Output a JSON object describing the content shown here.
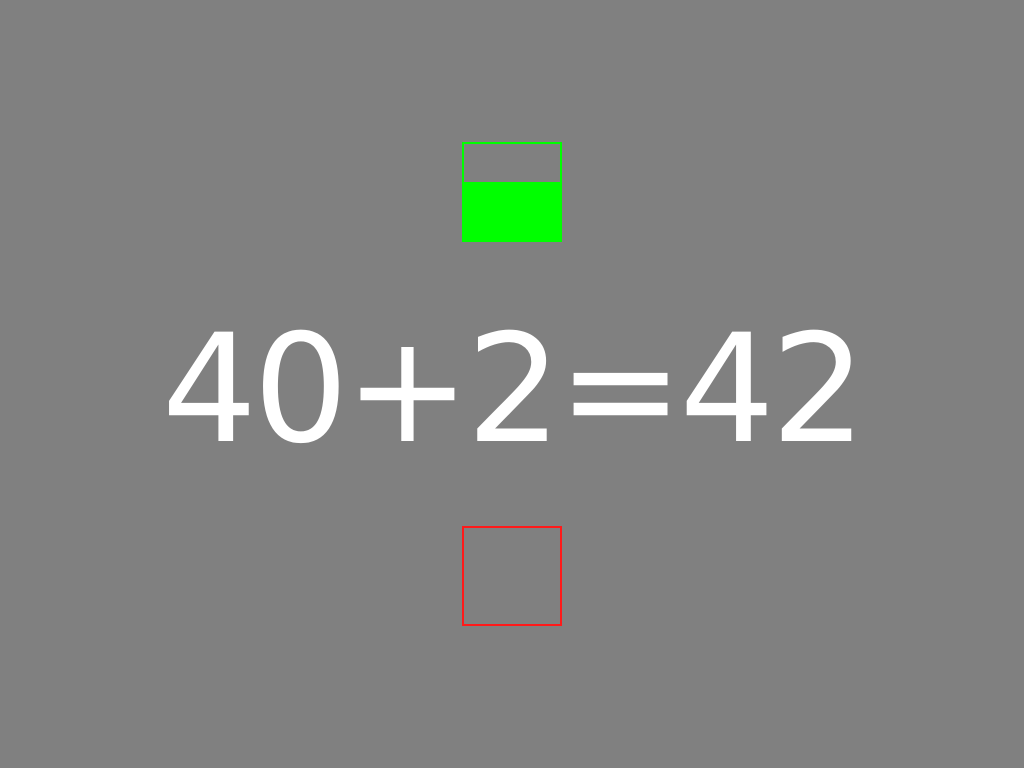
{
  "equation": {
    "text": "40+2=42"
  },
  "correct_meter": {
    "level": 0.6,
    "color": "#00ff00"
  },
  "wrong_meter": {
    "level": 0.0,
    "color": "#ff1a1a"
  },
  "colors": {
    "background": "#808080",
    "text": "#ffffff"
  }
}
